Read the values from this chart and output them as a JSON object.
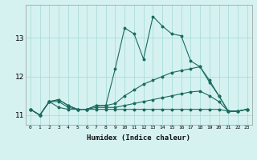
{
  "x": [
    0,
    1,
    2,
    3,
    4,
    5,
    6,
    7,
    8,
    9,
    10,
    11,
    12,
    13,
    14,
    15,
    16,
    17,
    18,
    19,
    20,
    21,
    22,
    23
  ],
  "line1": [
    11.15,
    11.0,
    11.35,
    11.2,
    11.15,
    11.15,
    11.15,
    11.15,
    11.15,
    11.15,
    11.15,
    11.15,
    11.15,
    11.15,
    11.15,
    11.15,
    11.15,
    11.15,
    11.15,
    11.15,
    11.15,
    11.1,
    11.1,
    11.15
  ],
  "line2": [
    11.15,
    11.0,
    11.35,
    11.35,
    11.2,
    11.15,
    11.15,
    11.2,
    11.2,
    11.2,
    11.25,
    11.3,
    11.35,
    11.4,
    11.45,
    11.5,
    11.55,
    11.6,
    11.62,
    11.5,
    11.35,
    11.1,
    11.1,
    11.15
  ],
  "line3": [
    11.15,
    11.0,
    11.35,
    11.4,
    11.25,
    11.15,
    11.15,
    11.25,
    11.25,
    11.3,
    11.5,
    11.65,
    11.8,
    11.9,
    12.0,
    12.1,
    12.15,
    12.2,
    12.25,
    11.9,
    11.5,
    11.1,
    11.1,
    11.15
  ],
  "line4": [
    11.15,
    11.0,
    11.35,
    11.4,
    11.25,
    11.15,
    11.15,
    11.25,
    11.25,
    12.2,
    13.25,
    13.1,
    12.45,
    13.55,
    13.3,
    13.1,
    13.05,
    12.4,
    12.25,
    11.85,
    11.5,
    11.1,
    11.1,
    11.15
  ],
  "bg_color": "#d5f2f0",
  "grid_color": "#aaddda",
  "line_color": "#1b6b5e",
  "xlabel": "Humidex (Indice chaleur)",
  "ylim": [
    10.75,
    13.85
  ],
  "xlim": [
    -0.5,
    23.5
  ],
  "yticks": [
    11,
    12,
    13
  ],
  "xticks": [
    0,
    1,
    2,
    3,
    4,
    5,
    6,
    7,
    8,
    9,
    10,
    11,
    12,
    13,
    14,
    15,
    16,
    17,
    18,
    19,
    20,
    21,
    22,
    23
  ]
}
